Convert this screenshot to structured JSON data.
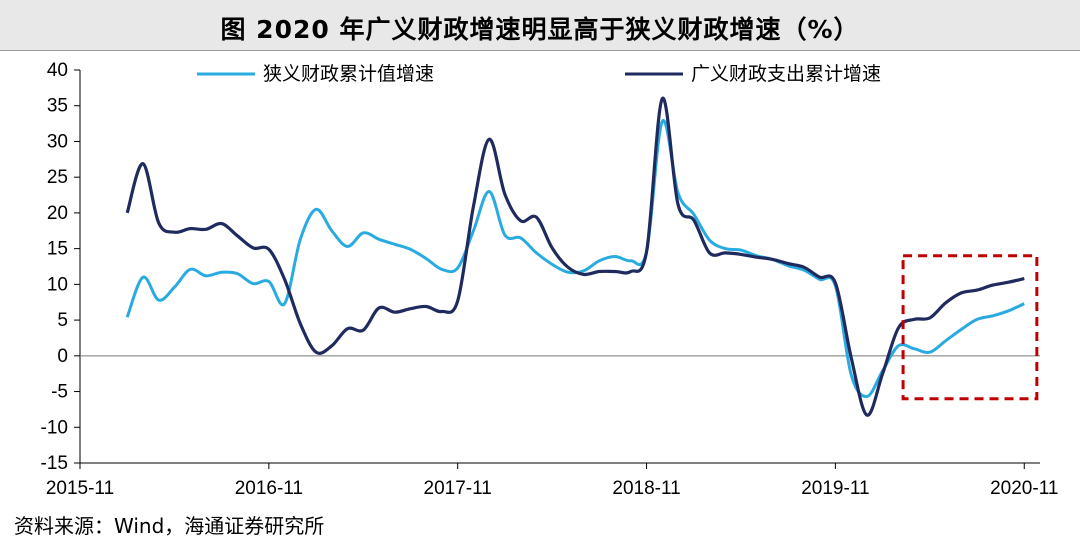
{
  "title": "图  2020 年广义财政增速明显高于狭义财政增速（%）",
  "source": "资料来源：Wind，海通证券研究所",
  "chart_data": {
    "type": "line",
    "ylim": [
      -15,
      40
    ],
    "yticks": [
      40,
      35,
      30,
      25,
      20,
      15,
      10,
      5,
      0,
      -5,
      -10,
      -15
    ],
    "xtick_labels": [
      "2015-11",
      "2016-11",
      "2017-11",
      "2018-11",
      "2019-11",
      "2020-11"
    ],
    "xlim": [
      0,
      61
    ],
    "grid": false,
    "legend_position": "top",
    "series": [
      {
        "name": "狭义财政累计值增速",
        "color": "#29abe2",
        "x": [
          3,
          4,
          5,
          6,
          7,
          8,
          9,
          10,
          11,
          12,
          13,
          14,
          15,
          16,
          17,
          18,
          19,
          20,
          21,
          22,
          23,
          24,
          25,
          26,
          27,
          28,
          29,
          30,
          31,
          32,
          33,
          34,
          35,
          36,
          37,
          38,
          39,
          40,
          41,
          42,
          43,
          44,
          45,
          46,
          47,
          48,
          49,
          50,
          51,
          52,
          53,
          54,
          55,
          56,
          57,
          58,
          59,
          60
        ],
        "values": [
          5.4,
          11.0,
          7.8,
          9.6,
          12.1,
          11.2,
          11.7,
          11.5,
          10.1,
          10.4,
          7.3,
          16.3,
          20.5,
          17.5,
          15.3,
          17.2,
          16.3,
          15.6,
          14.9,
          13.6,
          12.1,
          12.3,
          17.5,
          23.0,
          16.9,
          16.5,
          14.4,
          12.8,
          11.7,
          11.9,
          13.3,
          13.9,
          13.3,
          14.6,
          32.8,
          22.8,
          19.8,
          16.2,
          15.0,
          14.8,
          14.0,
          13.5,
          12.6,
          12.0,
          10.7,
          9.8,
          -2.6,
          -5.7,
          -2.1,
          1.4,
          1.0,
          0.5,
          2.1,
          3.7,
          5.1,
          5.6,
          6.3,
          7.3
        ]
      },
      {
        "name": "广义财政支出累计增速",
        "color": "#1f2b5e",
        "x": [
          3,
          4,
          5,
          6,
          7,
          8,
          9,
          10,
          11,
          12,
          13,
          14,
          15,
          16,
          17,
          18,
          19,
          20,
          21,
          22,
          23,
          24,
          25,
          26,
          27,
          28,
          29,
          30,
          31,
          32,
          33,
          34,
          35,
          36,
          37,
          38,
          39,
          40,
          41,
          42,
          43,
          44,
          45,
          46,
          47,
          48,
          49,
          50,
          51,
          52,
          53,
          54,
          55,
          56,
          57,
          58,
          59,
          60
        ],
        "values": [
          20.0,
          26.9,
          18.6,
          17.3,
          17.8,
          17.7,
          18.5,
          16.8,
          15.1,
          14.9,
          10.7,
          4.5,
          0.5,
          1.4,
          3.8,
          3.6,
          6.7,
          6.1,
          6.6,
          6.9,
          6.2,
          7.7,
          20.9,
          30.3,
          22.6,
          18.9,
          19.4,
          15.1,
          12.4,
          11.4,
          11.8,
          11.8,
          11.8,
          14.6,
          36.0,
          21.2,
          19.0,
          14.4,
          14.4,
          14.2,
          13.8,
          13.5,
          12.9,
          12.4,
          11.0,
          10.2,
          -0.2,
          -8.3,
          -2.5,
          3.9,
          5.1,
          5.3,
          7.4,
          8.8,
          9.2,
          9.9,
          10.3,
          10.8
        ]
      }
    ],
    "annotation": {
      "type": "dashed-rectangle",
      "color": "#c00000",
      "x_range": [
        52.3,
        60.8
      ],
      "y_range": [
        -6,
        14
      ]
    }
  }
}
